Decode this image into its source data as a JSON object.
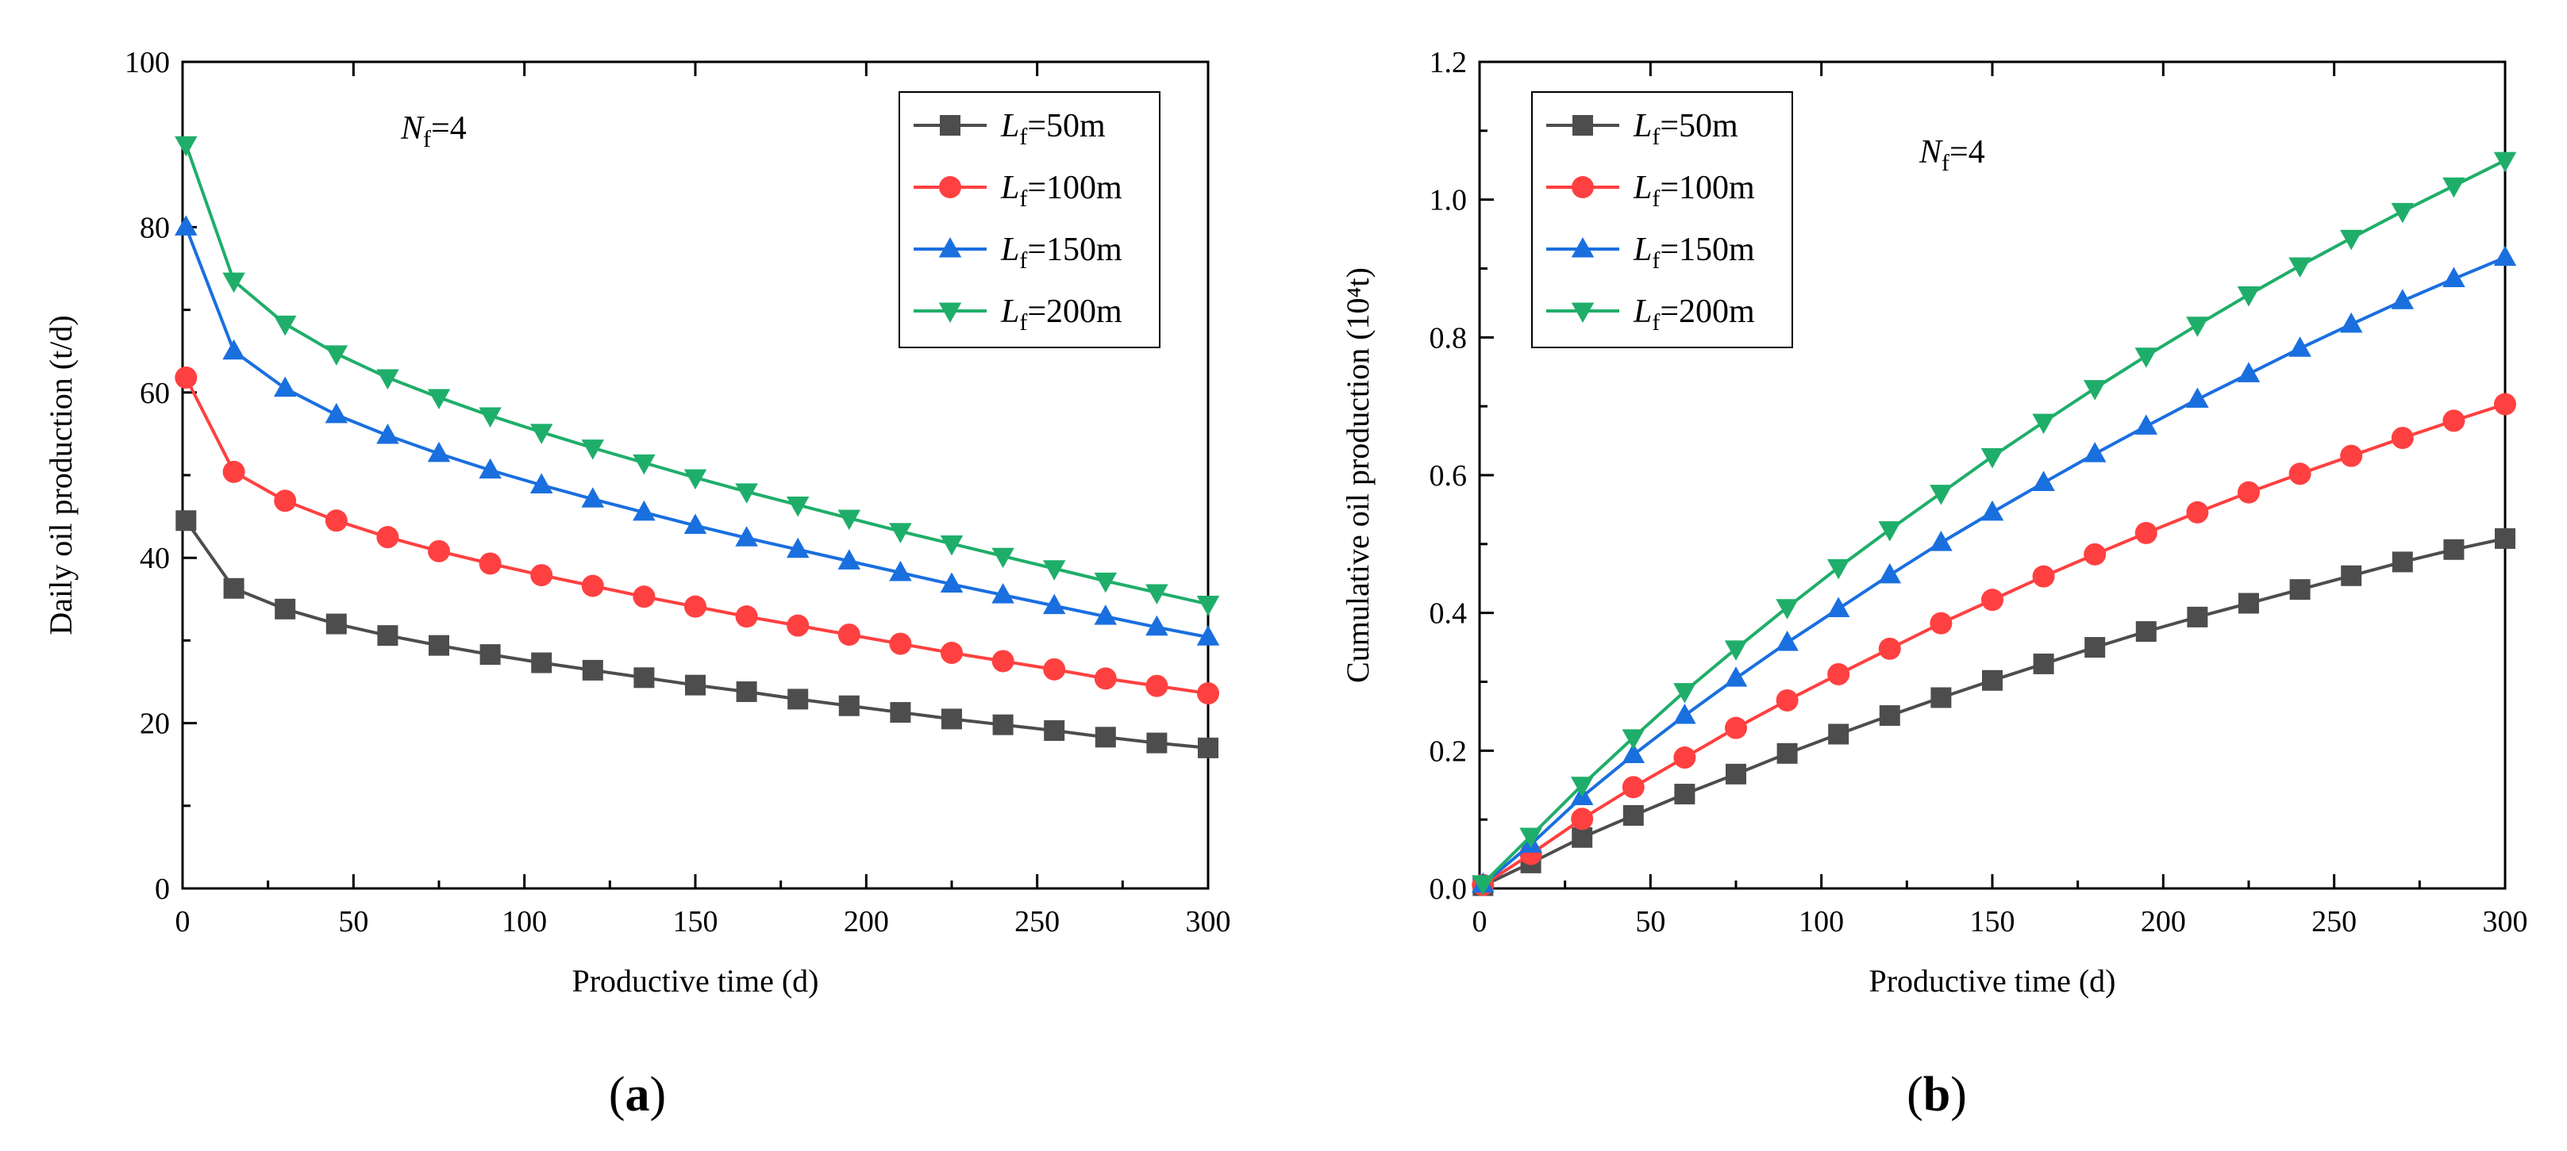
{
  "panels": [
    {
      "caption": "a",
      "title": "",
      "annotation": {
        "symbol": "N",
        "sub": "f",
        "rest": "=4"
      },
      "chart_data": {
        "type": "line",
        "xlabel": "Productive time (d)",
        "ylabel": "Daily oil production (t/d)",
        "xlim": [
          0,
          300
        ],
        "ylim": [
          0,
          100
        ],
        "xticks": [
          0,
          50,
          100,
          150,
          200,
          250,
          300
        ],
        "yticks": [
          0,
          20,
          40,
          60,
          80,
          100
        ],
        "tick_labels_x": [
          "0",
          "50",
          "100",
          "150",
          "200",
          "250",
          "300"
        ],
        "tick_labels_y": [
          "0",
          "20",
          "40",
          "60",
          "80",
          "100"
        ],
        "grid": false,
        "legend_position": "top-right",
        "x": [
          1,
          15,
          30,
          45,
          60,
          75,
          90,
          105,
          120,
          135,
          150,
          165,
          180,
          195,
          210,
          225,
          240,
          255,
          270,
          285,
          300
        ],
        "series": [
          {
            "name": "Lf=50m",
            "label_symbol": "L",
            "label_sub": "f",
            "label_rest": "=50m",
            "color": "#4d4d4d",
            "marker": "square",
            "values": [
              44.5,
              36.3,
              33.8,
              32.0,
              30.6,
              29.4,
              28.3,
              27.3,
              26.4,
              25.5,
              24.6,
              23.8,
              22.9,
              22.1,
              21.3,
              20.5,
              19.8,
              19.1,
              18.3,
              17.6,
              17.0
            ]
          },
          {
            "name": "Lf=100m",
            "label_symbol": "L",
            "label_sub": "f",
            "label_rest": "=100m",
            "color": "#ff4040",
            "marker": "circle",
            "values": [
              61.8,
              50.4,
              46.9,
              44.5,
              42.5,
              40.8,
              39.3,
              37.9,
              36.6,
              35.3,
              34.1,
              32.9,
              31.8,
              30.7,
              29.6,
              28.5,
              27.5,
              26.5,
              25.4,
              24.5,
              23.6
            ]
          },
          {
            "name": "Lf=150m",
            "label_symbol": "L",
            "label_sub": "f",
            "label_rest": "=150m",
            "color": "#1a6fdf",
            "marker": "triangle-up",
            "values": [
              80.0,
              65.0,
              60.5,
              57.3,
              54.8,
              52.6,
              50.6,
              48.8,
              47.1,
              45.5,
              43.9,
              42.4,
              41.0,
              39.6,
              38.2,
              36.8,
              35.5,
              34.2,
              32.9,
              31.6,
              30.4
            ]
          },
          {
            "name": "Lf=200m",
            "label_symbol": "L",
            "label_sub": "f",
            "label_rest": "=200m",
            "color": "#1fae6a",
            "marker": "triangle-down",
            "values": [
              90.0,
              73.5,
              68.3,
              64.7,
              61.8,
              59.4,
              57.2,
              55.2,
              53.3,
              51.5,
              49.7,
              48.0,
              46.4,
              44.8,
              43.2,
              41.7,
              40.2,
              38.7,
              37.2,
              35.8,
              34.4
            ]
          }
        ]
      }
    },
    {
      "caption": "b",
      "title": "",
      "annotation": {
        "symbol": "N",
        "sub": "f",
        "rest": "=4"
      },
      "chart_data": {
        "type": "line",
        "xlabel": "Productive time (d)",
        "ylabel": "Cumulative oil production (10⁴t)",
        "xlim": [
          0,
          300
        ],
        "ylim": [
          0,
          1.2
        ],
        "xticks": [
          0,
          50,
          100,
          150,
          200,
          250,
          300
        ],
        "yticks": [
          0,
          0.2,
          0.4,
          0.6,
          0.8,
          1.0,
          1.2
        ],
        "tick_labels_x": [
          "0",
          "50",
          "100",
          "150",
          "200",
          "250",
          "300"
        ],
        "tick_labels_y": [
          "0.0",
          "0.2",
          "0.4",
          "0.6",
          "0.8",
          "1.0",
          "1.2"
        ],
        "grid": false,
        "legend_position": "top-left",
        "x": [
          1,
          15,
          30,
          45,
          60,
          75,
          90,
          105,
          120,
          135,
          150,
          165,
          180,
          195,
          210,
          225,
          240,
          255,
          270,
          285,
          300
        ],
        "series": [
          {
            "name": "Lf=50m",
            "label_symbol": "L",
            "label_sub": "f",
            "label_rest": "=50m",
            "color": "#4d4d4d",
            "marker": "square",
            "values": [
              0.004,
              0.037,
              0.074,
              0.106,
              0.137,
              0.166,
              0.196,
              0.224,
              0.251,
              0.277,
              0.302,
              0.326,
              0.35,
              0.373,
              0.394,
              0.414,
              0.434,
              0.454,
              0.474,
              0.492,
              0.508
            ]
          },
          {
            "name": "Lf=100m",
            "label_symbol": "L",
            "label_sub": "f",
            "label_rest": "=100m",
            "color": "#ff4040",
            "marker": "circle",
            "values": [
              0.005,
              0.05,
              0.101,
              0.147,
              0.19,
              0.233,
              0.273,
              0.311,
              0.348,
              0.385,
              0.419,
              0.453,
              0.485,
              0.516,
              0.546,
              0.575,
              0.602,
              0.628,
              0.654,
              0.679,
              0.703
            ]
          },
          {
            "name": "Lf=150m",
            "label_symbol": "L",
            "label_sub": "f",
            "label_rest": "=150m",
            "color": "#1a6fdf",
            "marker": "triangle-up",
            "values": [
              0.006,
              0.064,
              0.133,
              0.194,
              0.251,
              0.305,
              0.357,
              0.406,
              0.455,
              0.502,
              0.546,
              0.589,
              0.631,
              0.671,
              0.71,
              0.747,
              0.784,
              0.819,
              0.853,
              0.885,
              0.916
            ]
          },
          {
            "name": "Lf=200m",
            "label_symbol": "L",
            "label_sub": "f",
            "label_rest": "=200m",
            "color": "#1fae6a",
            "marker": "triangle-down",
            "values": [
              0.007,
              0.076,
              0.15,
              0.219,
              0.286,
              0.348,
              0.408,
              0.466,
              0.521,
              0.574,
              0.627,
              0.677,
              0.726,
              0.773,
              0.818,
              0.862,
              0.904,
              0.944,
              0.983,
              1.02,
              1.057
            ]
          }
        ]
      }
    }
  ]
}
